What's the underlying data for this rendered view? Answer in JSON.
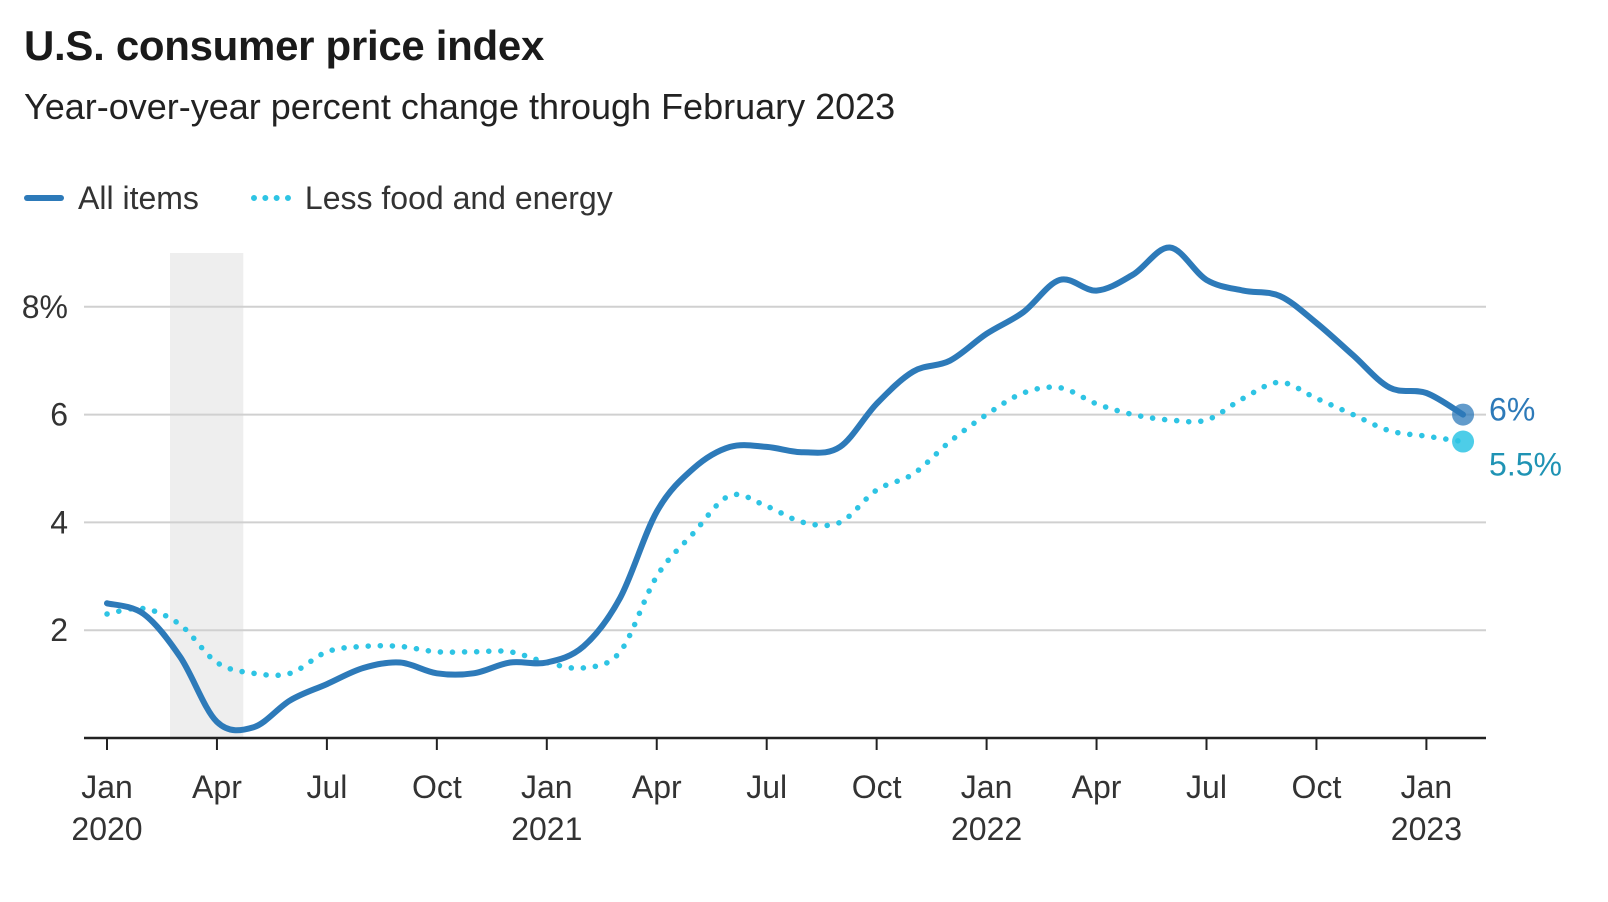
{
  "chart_data": {
    "type": "line",
    "title": "U.S. consumer price index",
    "subtitle": "Year-over-year percent change through February 2023",
    "xlabel": "",
    "ylabel": "",
    "ylim": [
      0,
      9
    ],
    "y_ticks": [
      {
        "value": 2,
        "label": "2"
      },
      {
        "value": 4,
        "label": "4"
      },
      {
        "value": 6,
        "label": "6"
      },
      {
        "value": 8,
        "label": "8%"
      }
    ],
    "x_ticks": [
      {
        "date": "2020-01",
        "month": "Jan",
        "year": "2020"
      },
      {
        "date": "2020-04",
        "month": "Apr",
        "year": ""
      },
      {
        "date": "2020-07",
        "month": "Jul",
        "year": ""
      },
      {
        "date": "2020-10",
        "month": "Oct",
        "year": ""
      },
      {
        "date": "2021-01",
        "month": "Jan",
        "year": "2021"
      },
      {
        "date": "2021-04",
        "month": "Apr",
        "year": ""
      },
      {
        "date": "2021-07",
        "month": "Jul",
        "year": ""
      },
      {
        "date": "2021-10",
        "month": "Oct",
        "year": ""
      },
      {
        "date": "2022-01",
        "month": "Jan",
        "year": "2022"
      },
      {
        "date": "2022-04",
        "month": "Apr",
        "year": ""
      },
      {
        "date": "2022-07",
        "month": "Jul",
        "year": ""
      },
      {
        "date": "2022-10",
        "month": "Oct",
        "year": ""
      },
      {
        "date": "2023-01",
        "month": "Jan",
        "year": "2023"
      }
    ],
    "shaded_period": {
      "start": "2020-03",
      "end": "2020-04",
      "color": "#eeeeee"
    },
    "grid": true,
    "legend_position": "top-left",
    "x": [
      "2020-01",
      "2020-02",
      "2020-03",
      "2020-04",
      "2020-05",
      "2020-06",
      "2020-07",
      "2020-08",
      "2020-09",
      "2020-10",
      "2020-11",
      "2020-12",
      "2021-01",
      "2021-02",
      "2021-03",
      "2021-04",
      "2021-05",
      "2021-06",
      "2021-07",
      "2021-08",
      "2021-09",
      "2021-10",
      "2021-11",
      "2021-12",
      "2022-01",
      "2022-02",
      "2022-03",
      "2022-04",
      "2022-05",
      "2022-06",
      "2022-07",
      "2022-08",
      "2022-09",
      "2022-10",
      "2022-11",
      "2022-12",
      "2023-01",
      "2023-02"
    ],
    "series": [
      {
        "name": "All items",
        "color": "#2d7ab9",
        "style": "solid",
        "end_label": "6%",
        "values": [
          2.5,
          2.3,
          1.5,
          0.3,
          0.2,
          0.7,
          1.0,
          1.3,
          1.4,
          1.2,
          1.2,
          1.4,
          1.4,
          1.7,
          2.6,
          4.2,
          5.0,
          5.4,
          5.4,
          5.3,
          5.4,
          6.2,
          6.8,
          7.0,
          7.5,
          7.9,
          8.5,
          8.3,
          8.6,
          9.1,
          8.5,
          8.3,
          8.2,
          7.7,
          7.1,
          6.5,
          6.4,
          6.0
        ]
      },
      {
        "name": "Less food and energy",
        "color": "#2ec4e4",
        "style": "dotted",
        "end_label": "5.5%",
        "values": [
          2.3,
          2.4,
          2.1,
          1.4,
          1.2,
          1.2,
          1.6,
          1.7,
          1.7,
          1.6,
          1.6,
          1.6,
          1.4,
          1.3,
          1.6,
          3.0,
          3.8,
          4.5,
          4.3,
          4.0,
          4.0,
          4.6,
          4.9,
          5.5,
          6.0,
          6.4,
          6.5,
          6.2,
          6.0,
          5.9,
          5.9,
          6.3,
          6.6,
          6.3,
          6.0,
          5.7,
          5.6,
          5.5
        ]
      }
    ]
  }
}
